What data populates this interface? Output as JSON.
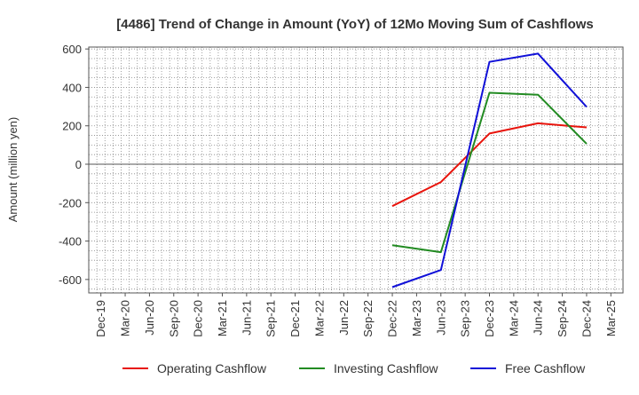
{
  "chart_data": {
    "type": "line",
    "title": "[4486]  Trend of Change in Amount (YoY) of 12Mo Moving Sum of Cashflows",
    "xlabel": "",
    "ylabel": "Amount (million yen)",
    "ylim": [
      -670,
      610
    ],
    "yticks": [
      600,
      400,
      200,
      0,
      -200,
      -400,
      -600
    ],
    "ytick_labels": [
      "600",
      "400",
      "200",
      "0",
      "-200",
      "-400",
      "-600"
    ],
    "categories": [
      "Dec-19",
      "Mar-20",
      "Jun-20",
      "Sep-20",
      "Dec-20",
      "Mar-21",
      "Jun-21",
      "Sep-21",
      "Dec-21",
      "Mar-22",
      "Jun-22",
      "Sep-22",
      "Dec-22",
      "Mar-23",
      "Jun-23",
      "Sep-23",
      "Dec-23",
      "Mar-24",
      "Jun-24",
      "Sep-24",
      "Dec-24",
      "Mar-25"
    ],
    "grid": true,
    "legend_position": "bottom",
    "series": [
      {
        "name": "Operating Cashflow",
        "color": "#e8140c",
        "values": [
          null,
          null,
          null,
          null,
          null,
          null,
          null,
          null,
          null,
          null,
          null,
          null,
          -218,
          null,
          -93,
          null,
          160,
          null,
          213,
          null,
          192,
          null
        ]
      },
      {
        "name": "Investing Cashflow",
        "color": "#228b22",
        "values": [
          null,
          null,
          null,
          null,
          null,
          null,
          null,
          null,
          null,
          null,
          null,
          null,
          -422,
          null,
          -458,
          null,
          372,
          null,
          362,
          null,
          106,
          null
        ]
      },
      {
        "name": "Free Cashflow",
        "color": "#1010d8",
        "values": [
          null,
          null,
          null,
          null,
          null,
          null,
          null,
          null,
          null,
          null,
          null,
          null,
          -640,
          null,
          -551,
          null,
          533,
          null,
          576,
          null,
          298,
          null
        ]
      }
    ]
  }
}
